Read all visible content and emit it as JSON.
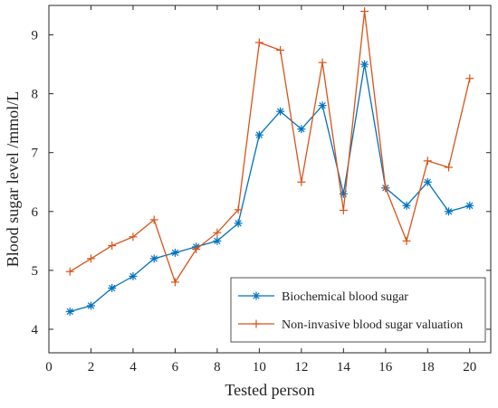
{
  "chart_data": {
    "type": "line",
    "xlabel": "Tested person",
    "ylabel": "Blood sugar level /mmol/L",
    "xlim": [
      0,
      21
    ],
    "ylim": [
      3.6,
      9.5
    ],
    "xticks": [
      0,
      2,
      4,
      6,
      8,
      10,
      12,
      14,
      16,
      18,
      20
    ],
    "yticks": [
      4,
      5,
      6,
      7,
      8,
      9
    ],
    "grid": false,
    "legend_position": "bottom-right",
    "x": [
      1,
      2,
      3,
      4,
      5,
      6,
      7,
      8,
      9,
      10,
      11,
      12,
      13,
      14,
      15,
      16,
      17,
      18,
      19,
      20
    ],
    "series": [
      {
        "name": "Biochemical blood sugar",
        "color": "#0072BD",
        "marker": "asterisk",
        "values": [
          4.3,
          4.4,
          4.7,
          4.9,
          5.2,
          5.3,
          5.4,
          5.5,
          5.8,
          7.3,
          7.7,
          7.4,
          7.8,
          6.3,
          8.5,
          6.4,
          6.1,
          6.5,
          6.0,
          6.1
        ]
      },
      {
        "name": "Non-invasive blood sugar valuation",
        "color": "#D95319",
        "marker": "plus",
        "values": [
          4.98,
          5.2,
          5.42,
          5.57,
          5.86,
          4.8,
          5.36,
          5.64,
          6.03,
          8.87,
          8.74,
          6.5,
          8.53,
          6.02,
          9.4,
          6.4,
          5.5,
          6.86,
          6.75,
          8.26
        ]
      }
    ]
  }
}
